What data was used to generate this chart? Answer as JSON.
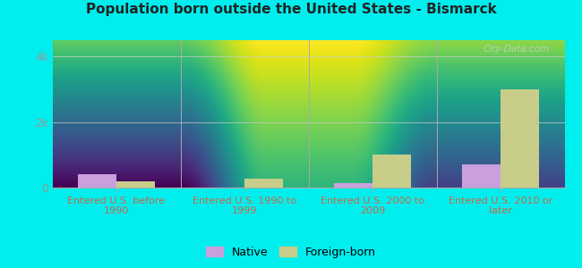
{
  "title": "Population born outside the United States - Bismarck",
  "categories": [
    "Entered U.S. before\n1990",
    "Entered U.S. 1990 to\n1999",
    "Entered U.S. 2000 to\n2009",
    "Entered U.S. 2010 or\nlater"
  ],
  "native_values": [
    400,
    0,
    150,
    700
  ],
  "foreign_values": [
    200,
    280,
    1000,
    3000
  ],
  "native_color": "#c9a0dc",
  "foreign_color": "#c8cd8a",
  "ylim": [
    0,
    4500
  ],
  "yticks": [
    0,
    2000,
    4000
  ],
  "ytick_labels": [
    "0",
    "2k",
    "4k"
  ],
  "background_top": "#f5fff8",
  "background_bottom": "#d4f5dd",
  "outer_background": "#00eeee",
  "bar_width": 0.3,
  "legend_native": "Native",
  "legend_foreign": "Foreign-born",
  "watermark": "City-Data.com"
}
